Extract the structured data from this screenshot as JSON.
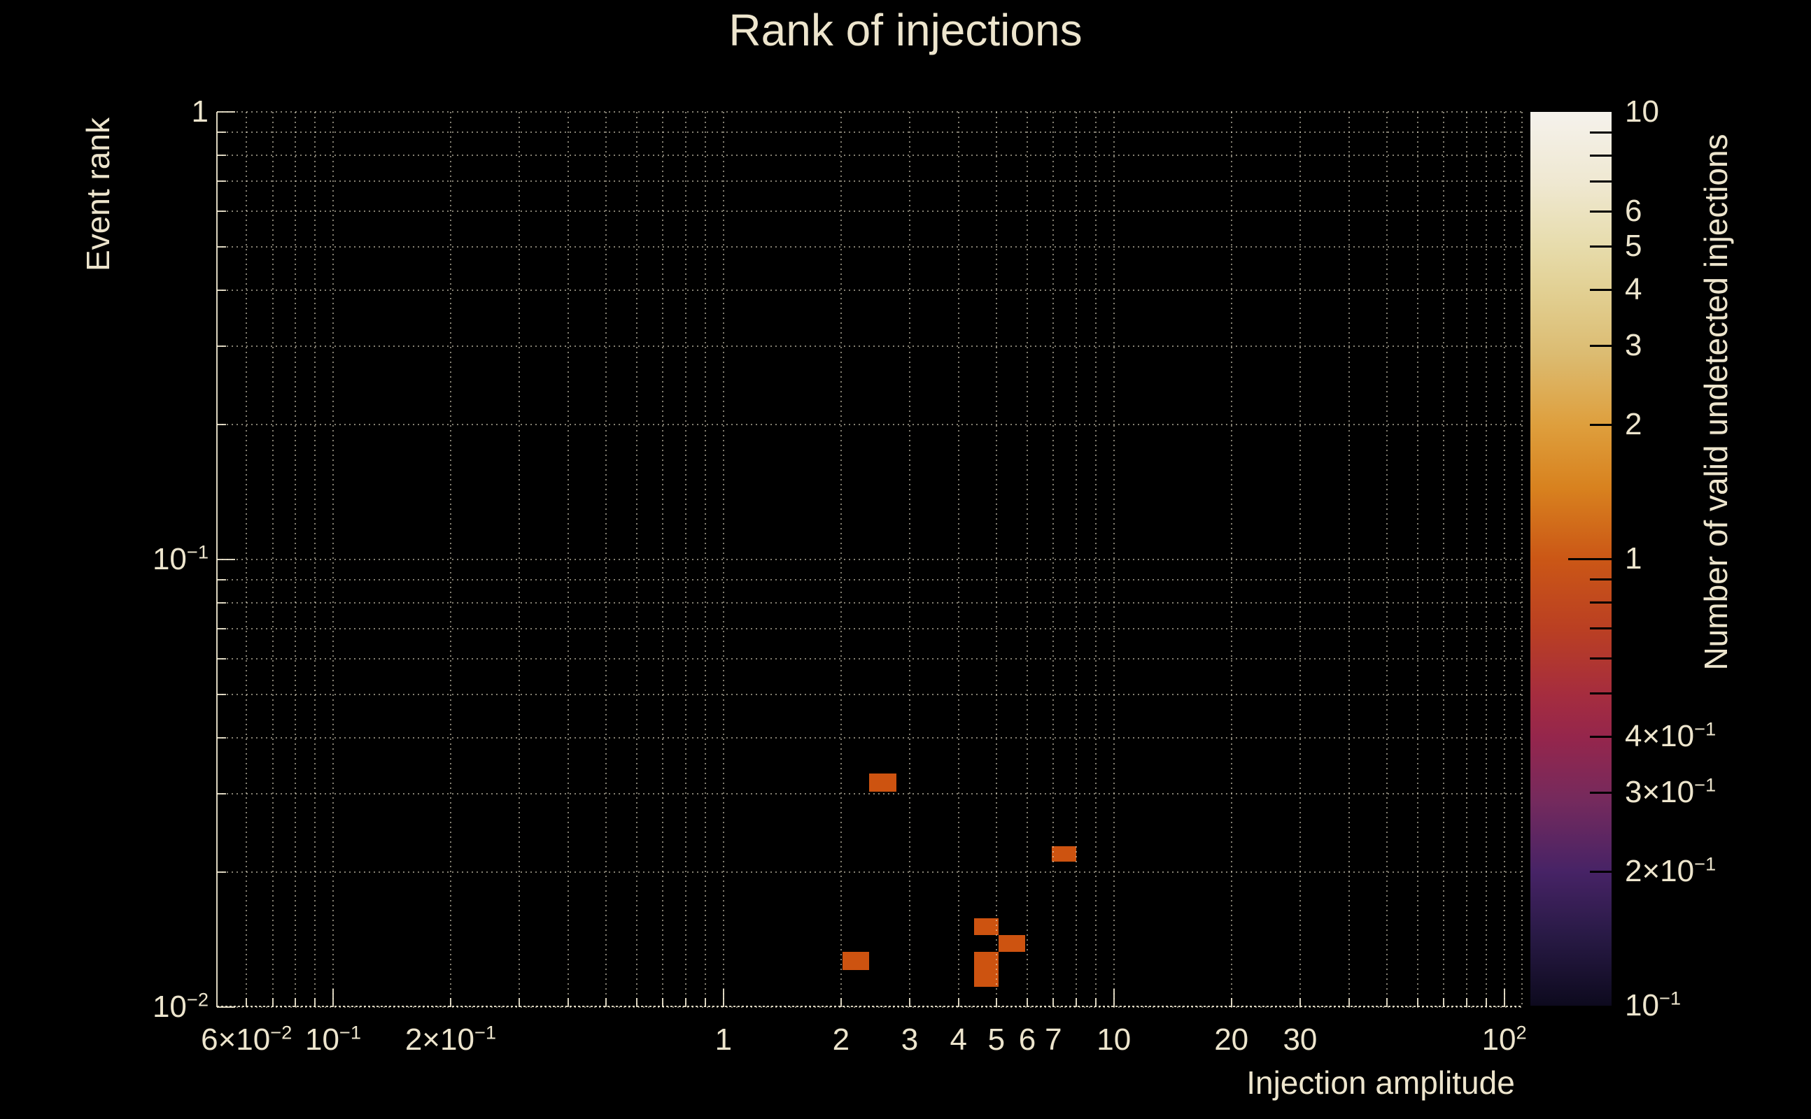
{
  "colors": {
    "background": "#000000",
    "text": "#EDE5CD",
    "grid": "rgba(240,232,208,0.55)",
    "cell": "#CD5310"
  },
  "chart_data": {
    "type": "heatmap",
    "title": "Rank of injections",
    "xlabel": "Injection amplitude",
    "ylabel": "Event rank",
    "colorbar_label": "Number of valid undetected injections",
    "x_scale": "log",
    "y_scale": "log",
    "xlim": [
      0.0504,
      111.5
    ],
    "ylim": [
      0.01,
      1
    ],
    "grid": true,
    "x_grid": [
      0.06,
      0.07,
      0.08,
      0.09,
      0.1,
      0.2,
      0.3,
      0.4,
      0.5,
      0.6,
      0.7,
      0.8,
      0.9,
      1,
      2,
      3,
      4,
      5,
      6,
      7,
      8,
      9,
      10,
      20,
      30,
      40,
      50,
      60,
      70,
      80,
      90,
      100
    ],
    "y_grid": [
      0.01,
      0.02,
      0.03,
      0.04,
      0.05,
      0.06,
      0.07,
      0.08,
      0.09,
      0.1,
      0.2,
      0.3,
      0.4,
      0.5,
      0.6,
      0.7,
      0.8,
      0.9,
      1
    ],
    "x_ticks": [
      {
        "v": 0.06,
        "t": "6×10",
        "e": "−2"
      },
      {
        "v": 0.1,
        "t": "10",
        "e": "−1"
      },
      {
        "v": 0.2,
        "t": "2×10",
        "e": "−1"
      },
      {
        "v": 1,
        "t": "1"
      },
      {
        "v": 2,
        "t": "2"
      },
      {
        "v": 3,
        "t": "3"
      },
      {
        "v": 4,
        "t": "4"
      },
      {
        "v": 5,
        "t": "5"
      },
      {
        "v": 6,
        "t": "6"
      },
      {
        "v": 7,
        "t": "7"
      },
      {
        "v": 10,
        "t": "10"
      },
      {
        "v": 20,
        "t": "20"
      },
      {
        "v": 30,
        "t": "30"
      },
      {
        "v": 100,
        "t": "10",
        "e": "2"
      }
    ],
    "y_ticks": [
      {
        "v": 1,
        "t": "1"
      },
      {
        "v": 0.1,
        "t": "10",
        "e": "−1"
      },
      {
        "v": 0.01,
        "t": "10",
        "e": "−2"
      }
    ],
    "cells": [
      {
        "x0": 2.36,
        "x1": 2.77,
        "y0": 0.0303,
        "y1": 0.0333,
        "count": 1
      },
      {
        "x0": 6.94,
        "x1": 8.02,
        "y0": 0.0211,
        "y1": 0.0229,
        "count": 1
      },
      {
        "x0": 4.39,
        "x1": 5.07,
        "y0": 0.0145,
        "y1": 0.0158,
        "count": 1
      },
      {
        "x0": 5.07,
        "x1": 5.93,
        "y0": 0.0133,
        "y1": 0.0145,
        "count": 1
      },
      {
        "x0": 4.39,
        "x1": 5.07,
        "y0": 0.0111,
        "y1": 0.0133,
        "count": 1
      },
      {
        "x0": 2.02,
        "x1": 2.36,
        "y0": 0.0121,
        "y1": 0.0133,
        "count": 1
      }
    ],
    "colorbar": {
      "label": "Number of valid undetected injections",
      "scale": "log",
      "range": [
        0.1,
        10
      ],
      "ticks": [
        {
          "v": 10,
          "t": "10"
        },
        {
          "v": 6,
          "t": "6"
        },
        {
          "v": 5,
          "t": "5"
        },
        {
          "v": 4,
          "t": "4"
        },
        {
          "v": 3,
          "t": "3"
        },
        {
          "v": 2,
          "t": "2"
        },
        {
          "v": 1,
          "t": "1"
        },
        {
          "v": 0.4,
          "t": "4×10",
          "e": "−1"
        },
        {
          "v": 0.3,
          "t": "3×10",
          "e": "−1"
        },
        {
          "v": 0.2,
          "t": "2×10",
          "e": "−1"
        },
        {
          "v": 0.1,
          "t": "10",
          "e": "−1"
        }
      ],
      "minor_ticks": [
        9,
        8,
        7,
        6,
        5,
        4,
        3,
        2,
        0.9,
        0.8,
        0.7,
        0.6,
        0.5,
        0.4,
        0.3,
        0.2
      ],
      "major_ticks": [
        1
      ],
      "gradient": [
        {
          "pos": 0.0,
          "color": "#F5F2EC"
        },
        {
          "pos": 0.08,
          "color": "#EFE8D1"
        },
        {
          "pos": 0.15,
          "color": "#E7DCAC"
        },
        {
          "pos": 0.2,
          "color": "#E2D093"
        },
        {
          "pos": 0.27,
          "color": "#DCBC72"
        },
        {
          "pos": 0.35,
          "color": "#DE9F3D"
        },
        {
          "pos": 0.42,
          "color": "#D8821F"
        },
        {
          "pos": 0.5,
          "color": "#CB5716"
        },
        {
          "pos": 0.58,
          "color": "#BA3F23"
        },
        {
          "pos": 0.65,
          "color": "#A62D3E"
        },
        {
          "pos": 0.7,
          "color": "#95264C"
        },
        {
          "pos": 0.77,
          "color": "#752A5D"
        },
        {
          "pos": 0.85,
          "color": "#472366"
        },
        {
          "pos": 0.92,
          "color": "#291A46"
        },
        {
          "pos": 1.0,
          "color": "#0D0A1E"
        }
      ]
    }
  }
}
